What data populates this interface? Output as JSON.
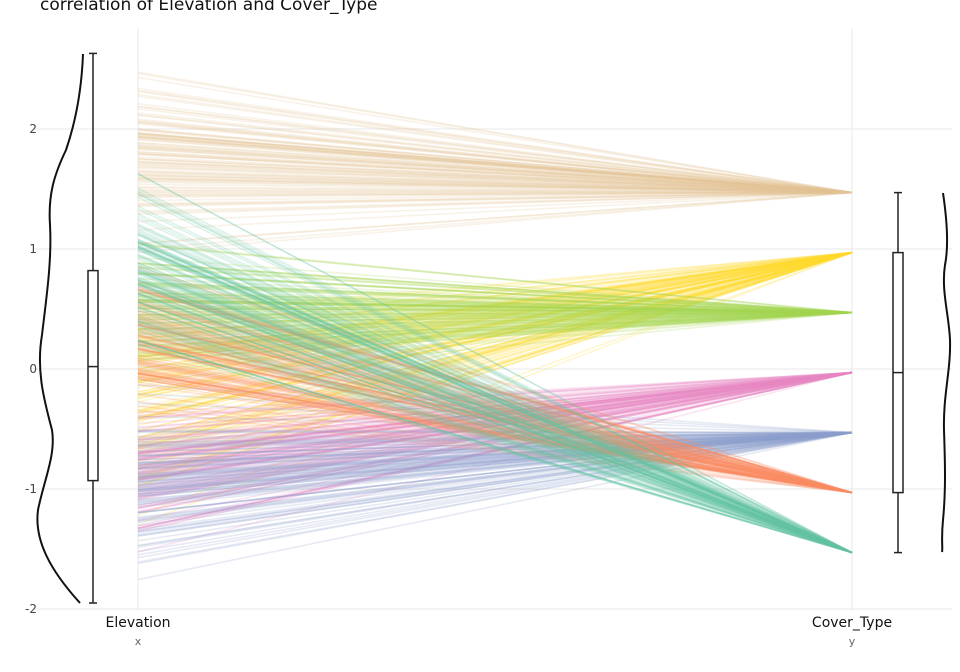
{
  "title": "correlation of Elevation and Cover_Type",
  "chart_data": {
    "type": "parallel-coordinates",
    "title": "correlation of Elevation and Cover_Type",
    "axes": [
      {
        "name": "Elevation",
        "sublabel": "x"
      },
      {
        "name": "Cover_Type",
        "sublabel": "y"
      }
    ],
    "ylim": [
      -2,
      2.7
    ],
    "yticks": [
      2,
      1,
      0,
      -1,
      -2
    ],
    "ytick_labels": [
      "2",
      "1",
      "0",
      "-1",
      "-2"
    ],
    "grid": true,
    "cover_type_levels": [
      {
        "y": 1.47,
        "color": "#e5c494"
      },
      {
        "y": 0.97,
        "color": "#ffd92f"
      },
      {
        "y": 0.47,
        "color": "#a6d854"
      },
      {
        "y": -0.03,
        "color": "#e78ac3"
      },
      {
        "y": -0.53,
        "color": "#8da0cb"
      },
      {
        "y": -1.03,
        "color": "#fc8d62"
      },
      {
        "y": -1.53,
        "color": "#66c2a5"
      }
    ],
    "elevation_box": {
      "min": -1.95,
      "q1": -0.93,
      "median": 0.02,
      "q3": 0.82,
      "max": 2.63
    },
    "cover_type_box": {
      "min": -1.53,
      "q1": -1.03,
      "median": -0.03,
      "q3": 0.97,
      "max": 1.47
    },
    "elevation_ranges_by_level": [
      {
        "level": 1.47,
        "from": 0.85,
        "to": 2.63
      },
      {
        "level": 0.97,
        "from": -1.5,
        "to": 0.8
      },
      {
        "level": 0.47,
        "from": -0.2,
        "to": 1.2
      },
      {
        "level": -0.03,
        "from": -1.7,
        "to": -0.1
      },
      {
        "level": -0.53,
        "from": -1.95,
        "to": 0.0
      },
      {
        "level": -1.03,
        "from": -0.6,
        "to": 1.0
      },
      {
        "level": -1.53,
        "from": -0.1,
        "to": 1.85
      }
    ]
  }
}
